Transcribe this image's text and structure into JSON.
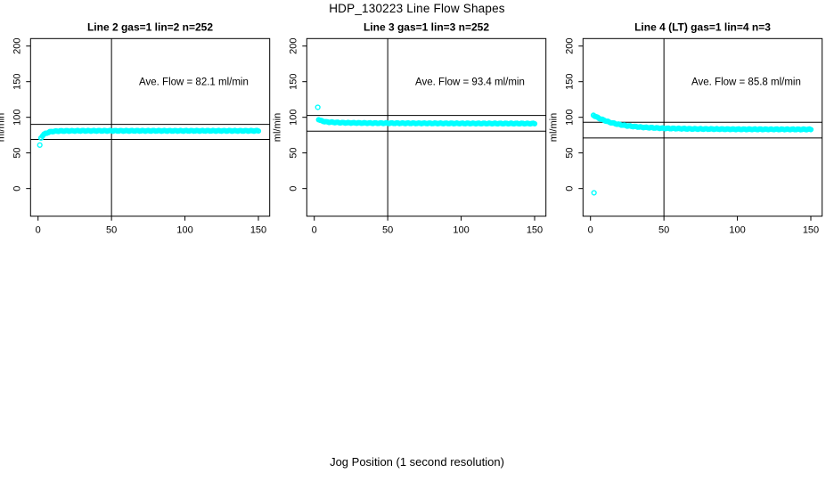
{
  "chart_data": {
    "type": "scatter",
    "title": "HDP_130223  Line Flow Shapes",
    "xlabel": "Jog Position (1 second resolution)",
    "ylabel": "ml/min",
    "xlim": [
      -5.1,
      157.7
    ],
    "ylim": [
      -38.8,
      210.5
    ],
    "x_ticks": [
      0,
      50,
      100,
      150
    ],
    "y_ticks": [
      0,
      50,
      100,
      150,
      200
    ],
    "grid": false,
    "legend": "none",
    "marker_color": "#00FFFF",
    "axis_color": "#000000",
    "background_color": "#FFFFFF",
    "panels": [
      {
        "title": "Line 2 gas=1 lin=2 n=252",
        "annotation": "Ave. Flow =  82.1  ml/min",
        "ave_flow_ml_min": 82.1,
        "n_points": 252,
        "ref_lines_y": [
          90,
          69
        ],
        "vline_x": 50,
        "outlier_points": [
          [
            1.2,
            61
          ]
        ],
        "curve_keypoints": [
          [
            2,
            71
          ],
          [
            2.5,
            72.5
          ],
          [
            3,
            74
          ],
          [
            4,
            76
          ],
          [
            5,
            77.2
          ],
          [
            6,
            78
          ],
          [
            8,
            79.5
          ],
          [
            10,
            80.2
          ],
          [
            15,
            80.8
          ],
          [
            30,
            81
          ],
          [
            60,
            81
          ],
          [
            100,
            81
          ],
          [
            150,
            81
          ]
        ]
      },
      {
        "title": "Line 3 gas=1 lin=3 n=252",
        "annotation": "Ave. Flow =  93.4  ml/min",
        "ave_flow_ml_min": 93.4,
        "n_points": 252,
        "ref_lines_y": [
          102.5,
          80.5
        ],
        "vline_x": 50,
        "outlier_points": [
          [
            2.4,
            114
          ]
        ],
        "curve_keypoints": [
          [
            3,
            97
          ],
          [
            4,
            95.5
          ],
          [
            5,
            95
          ],
          [
            8,
            93.5
          ],
          [
            12,
            93
          ],
          [
            20,
            92.3
          ],
          [
            40,
            91.8
          ],
          [
            80,
            91.5
          ],
          [
            120,
            91.3
          ],
          [
            150,
            91.2
          ]
        ]
      },
      {
        "title": "Line 4 (LT) gas=1 lin=4 n=3",
        "annotation": "Ave. Flow =  85.8  ml/min",
        "ave_flow_ml_min": 85.8,
        "n_points": 3,
        "ref_lines_y": [
          93,
          71
        ],
        "vline_x": 50,
        "outlier_points": [
          [
            2.4,
            -6
          ]
        ],
        "curve_keypoints": [
          [
            2,
            103
          ],
          [
            4,
            100.5
          ],
          [
            6,
            98.5
          ],
          [
            9,
            96
          ],
          [
            13,
            93
          ],
          [
            18,
            90.5
          ],
          [
            25,
            88
          ],
          [
            35,
            86
          ],
          [
            50,
            84.5
          ],
          [
            70,
            83.7
          ],
          [
            100,
            83.2
          ],
          [
            150,
            83
          ]
        ]
      }
    ]
  }
}
